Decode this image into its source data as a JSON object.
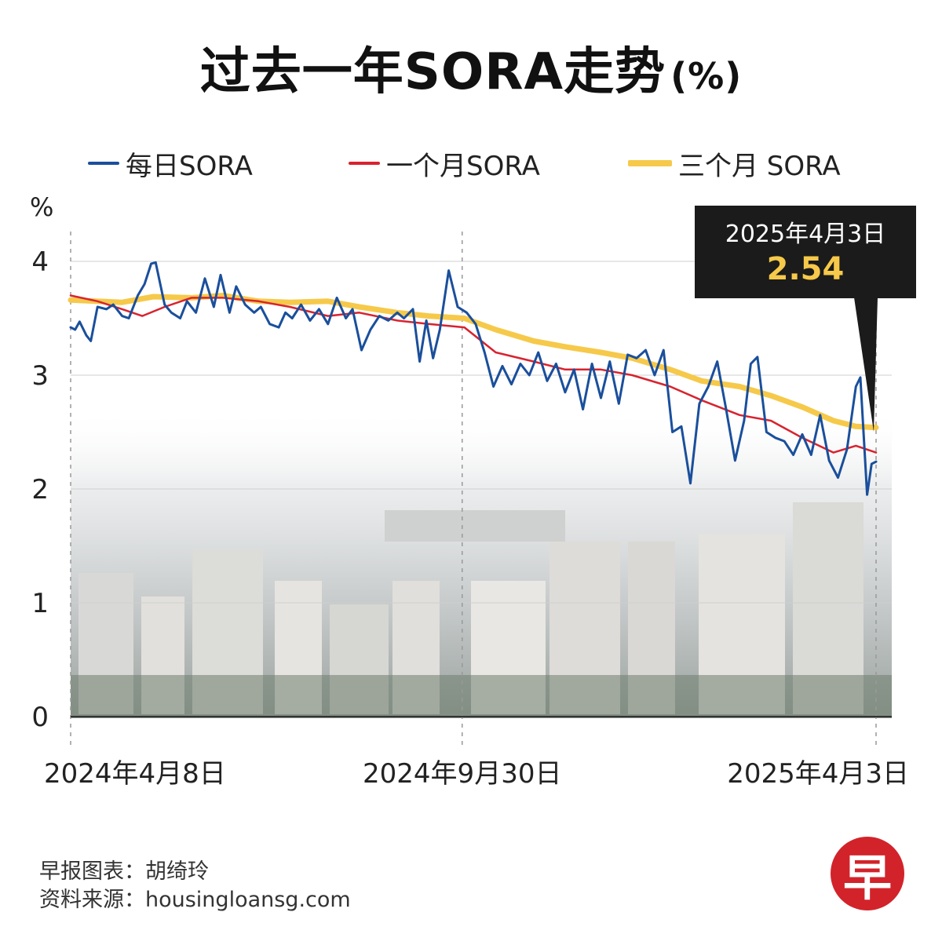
{
  "title": "过去一年SORA走势",
  "title_unit": "(%)",
  "legend": [
    {
      "label": "每日SORA",
      "color": "#1a4f9c"
    },
    {
      "label": "一个月SORA",
      "color": "#d8232f"
    },
    {
      "label": "三个月 SORA",
      "color": "#f6c94a"
    }
  ],
  "callout": {
    "date": "2025年4月3日",
    "value": "2.54",
    "value_color": "#f6c94a"
  },
  "footer": {
    "credit": "早报图表：胡绮玲",
    "source": "资料来源：housingloansg.com"
  },
  "logo_char": "早",
  "chart_data": {
    "type": "line",
    "y_unit_label": "%",
    "ylim": [
      0,
      4
    ],
    "y_ticks": [
      0,
      1,
      2,
      3,
      4
    ],
    "xlim": [
      "2024-04-08",
      "2025-04-03"
    ],
    "x_tick_labels": [
      {
        "label": "2024年4月8日",
        "date": "2024-04-08"
      },
      {
        "label": "2024年9月30日",
        "date": "2024-09-30"
      },
      {
        "label": "2025年4月3日",
        "date": "2025-04-03"
      }
    ],
    "grid": true,
    "series": [
      {
        "name": "每日SORA",
        "color": "#1a4f9c",
        "points": [
          [
            "2024-04-08",
            3.42
          ],
          [
            "2024-04-10",
            3.4
          ],
          [
            "2024-04-12",
            3.47
          ],
          [
            "2024-04-15",
            3.35
          ],
          [
            "2024-04-17",
            3.3
          ],
          [
            "2024-04-20",
            3.6
          ],
          [
            "2024-04-24",
            3.58
          ],
          [
            "2024-04-27",
            3.62
          ],
          [
            "2024-05-01",
            3.52
          ],
          [
            "2024-05-04",
            3.5
          ],
          [
            "2024-05-08",
            3.7
          ],
          [
            "2024-05-11",
            3.8
          ],
          [
            "2024-05-14",
            3.98
          ],
          [
            "2024-05-16",
            3.99
          ],
          [
            "2024-05-20",
            3.62
          ],
          [
            "2024-05-23",
            3.55
          ],
          [
            "2024-05-27",
            3.5
          ],
          [
            "2024-05-30",
            3.65
          ],
          [
            "2024-06-03",
            3.55
          ],
          [
            "2024-06-07",
            3.85
          ],
          [
            "2024-06-11",
            3.6
          ],
          [
            "2024-06-14",
            3.88
          ],
          [
            "2024-06-18",
            3.55
          ],
          [
            "2024-06-21",
            3.78
          ],
          [
            "2024-06-25",
            3.62
          ],
          [
            "2024-06-29",
            3.55
          ],
          [
            "2024-07-02",
            3.6
          ],
          [
            "2024-07-06",
            3.45
          ],
          [
            "2024-07-10",
            3.42
          ],
          [
            "2024-07-13",
            3.55
          ],
          [
            "2024-07-16",
            3.5
          ],
          [
            "2024-07-20",
            3.62
          ],
          [
            "2024-07-24",
            3.48
          ],
          [
            "2024-07-28",
            3.58
          ],
          [
            "2024-08-01",
            3.45
          ],
          [
            "2024-08-05",
            3.68
          ],
          [
            "2024-08-09",
            3.5
          ],
          [
            "2024-08-12",
            3.58
          ],
          [
            "2024-08-16",
            3.22
          ],
          [
            "2024-08-20",
            3.4
          ],
          [
            "2024-08-24",
            3.52
          ],
          [
            "2024-08-28",
            3.48
          ],
          [
            "2024-09-01",
            3.55
          ],
          [
            "2024-09-04",
            3.5
          ],
          [
            "2024-09-08",
            3.58
          ],
          [
            "2024-09-11",
            3.12
          ],
          [
            "2024-09-14",
            3.48
          ],
          [
            "2024-09-17",
            3.15
          ],
          [
            "2024-09-20",
            3.4
          ],
          [
            "2024-09-24",
            3.92
          ],
          [
            "2024-09-28",
            3.6
          ],
          [
            "2024-10-02",
            3.55
          ],
          [
            "2024-10-06",
            3.45
          ],
          [
            "2024-10-10",
            3.2
          ],
          [
            "2024-10-14",
            2.9
          ],
          [
            "2024-10-18",
            3.08
          ],
          [
            "2024-10-22",
            2.92
          ],
          [
            "2024-10-26",
            3.1
          ],
          [
            "2024-10-30",
            3.0
          ],
          [
            "2024-11-03",
            3.2
          ],
          [
            "2024-11-07",
            2.95
          ],
          [
            "2024-11-11",
            3.1
          ],
          [
            "2024-11-15",
            2.85
          ],
          [
            "2024-11-19",
            3.05
          ],
          [
            "2024-11-23",
            2.7
          ],
          [
            "2024-11-27",
            3.1
          ],
          [
            "2024-12-01",
            2.8
          ],
          [
            "2024-12-05",
            3.12
          ],
          [
            "2024-12-09",
            2.75
          ],
          [
            "2024-12-13",
            3.18
          ],
          [
            "2024-12-17",
            3.15
          ],
          [
            "2024-12-21",
            3.22
          ],
          [
            "2024-12-25",
            3.0
          ],
          [
            "2024-12-29",
            3.22
          ],
          [
            "2025-01-02",
            2.5
          ],
          [
            "2025-01-06",
            2.55
          ],
          [
            "2025-01-10",
            2.05
          ],
          [
            "2025-01-14",
            2.75
          ],
          [
            "2025-01-18",
            2.9
          ],
          [
            "2025-01-22",
            3.12
          ],
          [
            "2025-01-26",
            2.7
          ],
          [
            "2025-01-30",
            2.25
          ],
          [
            "2025-02-03",
            2.6
          ],
          [
            "2025-02-06",
            3.1
          ],
          [
            "2025-02-09",
            3.16
          ],
          [
            "2025-02-13",
            2.5
          ],
          [
            "2025-02-17",
            2.45
          ],
          [
            "2025-02-21",
            2.42
          ],
          [
            "2025-02-25",
            2.3
          ],
          [
            "2025-03-01",
            2.48
          ],
          [
            "2025-03-05",
            2.3
          ],
          [
            "2025-03-09",
            2.65
          ],
          [
            "2025-03-13",
            2.25
          ],
          [
            "2025-03-17",
            2.1
          ],
          [
            "2025-03-21",
            2.35
          ],
          [
            "2025-03-25",
            2.9
          ],
          [
            "2025-03-27",
            2.98
          ],
          [
            "2025-03-30",
            1.95
          ],
          [
            "2025-04-01",
            2.22
          ],
          [
            "2025-04-03",
            2.24
          ]
        ]
      },
      {
        "name": "一个月SORA",
        "color": "#d8232f",
        "points": [
          [
            "2024-04-08",
            3.7
          ],
          [
            "2024-04-20",
            3.65
          ],
          [
            "2024-05-01",
            3.58
          ],
          [
            "2024-05-10",
            3.52
          ],
          [
            "2024-05-20",
            3.6
          ],
          [
            "2024-06-01",
            3.68
          ],
          [
            "2024-06-15",
            3.68
          ],
          [
            "2024-07-01",
            3.65
          ],
          [
            "2024-07-15",
            3.6
          ],
          [
            "2024-08-01",
            3.52
          ],
          [
            "2024-08-15",
            3.55
          ],
          [
            "2024-09-01",
            3.48
          ],
          [
            "2024-09-15",
            3.45
          ],
          [
            "2024-10-01",
            3.42
          ],
          [
            "2024-10-15",
            3.2
          ],
          [
            "2024-11-01",
            3.12
          ],
          [
            "2024-11-15",
            3.05
          ],
          [
            "2024-12-01",
            3.05
          ],
          [
            "2024-12-15",
            3.0
          ],
          [
            "2025-01-01",
            2.9
          ],
          [
            "2025-01-15",
            2.78
          ],
          [
            "2025-02-01",
            2.65
          ],
          [
            "2025-02-15",
            2.6
          ],
          [
            "2025-03-01",
            2.45
          ],
          [
            "2025-03-15",
            2.32
          ],
          [
            "2025-03-25",
            2.38
          ],
          [
            "2025-04-03",
            2.32
          ]
        ]
      },
      {
        "name": "三个月 SORA",
        "color": "#f6c94a",
        "points": [
          [
            "2024-04-08",
            3.66
          ],
          [
            "2024-05-01",
            3.64
          ],
          [
            "2024-05-15",
            3.69
          ],
          [
            "2024-06-01",
            3.68
          ],
          [
            "2024-06-15",
            3.7
          ],
          [
            "2024-07-01",
            3.65
          ],
          [
            "2024-07-15",
            3.64
          ],
          [
            "2024-08-01",
            3.65
          ],
          [
            "2024-08-15",
            3.6
          ],
          [
            "2024-09-01",
            3.55
          ],
          [
            "2024-09-15",
            3.52
          ],
          [
            "2024-10-01",
            3.5
          ],
          [
            "2024-10-15",
            3.4
          ],
          [
            "2024-11-01",
            3.3
          ],
          [
            "2024-11-15",
            3.25
          ],
          [
            "2024-12-01",
            3.2
          ],
          [
            "2024-12-15",
            3.15
          ],
          [
            "2025-01-01",
            3.05
          ],
          [
            "2025-01-15",
            2.95
          ],
          [
            "2025-02-01",
            2.9
          ],
          [
            "2025-02-15",
            2.82
          ],
          [
            "2025-03-01",
            2.72
          ],
          [
            "2025-03-15",
            2.6
          ],
          [
            "2025-03-25",
            2.55
          ],
          [
            "2025-04-03",
            2.54
          ]
        ]
      }
    ]
  }
}
